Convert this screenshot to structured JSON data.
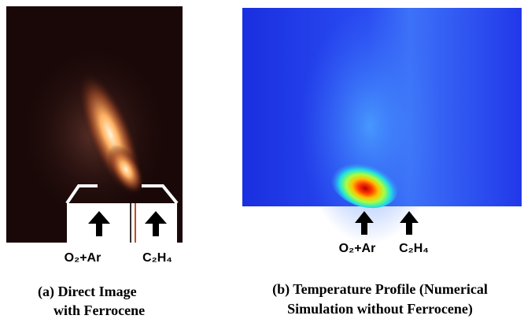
{
  "panels": [
    {
      "inlets": [
        "O₂+Ar",
        "C₂H₄"
      ],
      "caption": [
        "(a)   Direct Image",
        "with Ferrocene"
      ]
    },
    {
      "inlets": [
        "O₂+Ar",
        "C₂H₄"
      ],
      "caption": [
        "(b) Temperature Profile (Numerical",
        "Simulation without Ferrocene)"
      ]
    }
  ]
}
